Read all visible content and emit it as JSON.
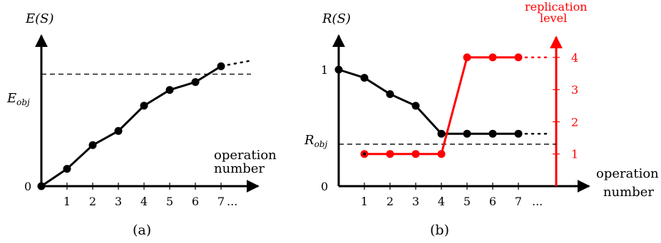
{
  "chart_data": [
    {
      "type": "line",
      "ylabel": "E(S)",
      "xlabel_line1": "operation",
      "xlabel_line2": "number",
      "caption": "(a)",
      "x_ticks": [
        "1",
        "2",
        "3",
        "4",
        "5",
        "6",
        "7"
      ],
      "x_ellipsis": "...",
      "y_zero_label": "0",
      "threshold_label": "E_obj",
      "threshold_value": 7.1,
      "ylim": [
        0,
        10
      ],
      "x": [
        0,
        1,
        2,
        3,
        4,
        5,
        6,
        7
      ],
      "values": [
        0,
        1.1,
        2.6,
        3.5,
        5.1,
        6.1,
        6.6,
        7.6
      ],
      "trailing_dots": true,
      "colors": {
        "series": "#000000"
      }
    },
    {
      "type": "line",
      "ylabel": "R(S)",
      "y2label_line1": "replication",
      "y2label_line2": "level",
      "xlabel_line1": "operation",
      "xlabel_line2": "number",
      "caption": "(b)",
      "x_ticks": [
        "1",
        "2",
        "3",
        "4",
        "5",
        "6",
        "7"
      ],
      "x_ellipsis": "...",
      "y_zero_label": "0",
      "y_one_label": "1",
      "threshold_label": "R_obj",
      "threshold_value": 0.36,
      "ylim": [
        0,
        1
      ],
      "y2_ticks": [
        "1",
        "2",
        "3",
        "4"
      ],
      "y2lim": [
        0,
        4.9
      ],
      "series": [
        {
          "x": [
            0,
            1,
            2,
            3,
            4,
            5,
            6,
            7
          ],
          "values": [
            1.0,
            0.93,
            0.79,
            0.69,
            0.45,
            0.45,
            0.45,
            0.45
          ],
          "axis": "left",
          "color": "#000000"
        },
        {
          "x": [
            1,
            2,
            3,
            4,
            5,
            6,
            7
          ],
          "values": [
            1,
            1,
            1,
            1,
            4,
            4,
            4
          ],
          "axis": "right",
          "color": "#ff0000"
        }
      ]
    }
  ]
}
